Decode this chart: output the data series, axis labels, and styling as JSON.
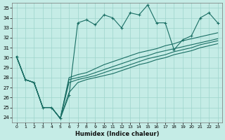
{
  "xlabel": "Humidex (Indice chaleur)",
  "bg_color": "#c5ece6",
  "grid_color": "#9dd4cc",
  "line_color": "#1a6e64",
  "xlim": [
    -0.5,
    23.5
  ],
  "ylim": [
    23.5,
    35.5
  ],
  "yticks": [
    24,
    25,
    26,
    27,
    28,
    29,
    30,
    31,
    32,
    33,
    34,
    35
  ],
  "xticks": [
    0,
    1,
    2,
    3,
    4,
    5,
    6,
    7,
    8,
    9,
    10,
    11,
    12,
    13,
    14,
    15,
    16,
    17,
    18,
    19,
    20,
    21,
    22,
    23
  ],
  "series": [
    [
      30.1,
      27.8,
      27.5,
      25.0,
      25.0,
      23.9,
      26.2,
      33.5,
      33.8,
      33.3,
      34.3,
      34.0,
      33.0,
      34.5,
      34.3,
      35.3,
      33.5,
      33.5,
      30.8,
      31.8,
      32.2,
      34.0,
      34.5,
      33.5
    ],
    [
      30.1,
      27.8,
      27.5,
      25.0,
      25.0,
      23.9,
      28.0,
      28.3,
      28.5,
      28.9,
      29.3,
      29.6,
      29.9,
      30.2,
      30.5,
      30.7,
      30.9,
      31.2,
      31.4,
      31.7,
      31.9,
      32.1,
      32.3,
      32.5
    ],
    [
      30.1,
      27.8,
      27.5,
      25.0,
      25.0,
      23.9,
      27.8,
      28.0,
      28.2,
      28.5,
      28.8,
      29.1,
      29.4,
      29.7,
      30.0,
      30.2,
      30.5,
      30.7,
      30.9,
      31.1,
      31.3,
      31.5,
      31.7,
      31.9
    ],
    [
      30.1,
      27.8,
      27.5,
      25.0,
      25.0,
      23.9,
      27.5,
      27.8,
      28.0,
      28.2,
      28.5,
      28.8,
      29.0,
      29.3,
      29.6,
      29.9,
      30.1,
      30.3,
      30.6,
      30.8,
      31.0,
      31.3,
      31.5,
      31.7
    ],
    [
      30.1,
      27.8,
      27.5,
      25.0,
      25.0,
      23.9,
      26.5,
      27.5,
      27.8,
      28.0,
      28.2,
      28.4,
      28.7,
      29.0,
      29.3,
      29.5,
      29.8,
      30.0,
      30.3,
      30.5,
      30.7,
      31.0,
      31.2,
      31.4
    ]
  ],
  "markers": [
    true,
    false,
    false,
    false,
    false
  ]
}
